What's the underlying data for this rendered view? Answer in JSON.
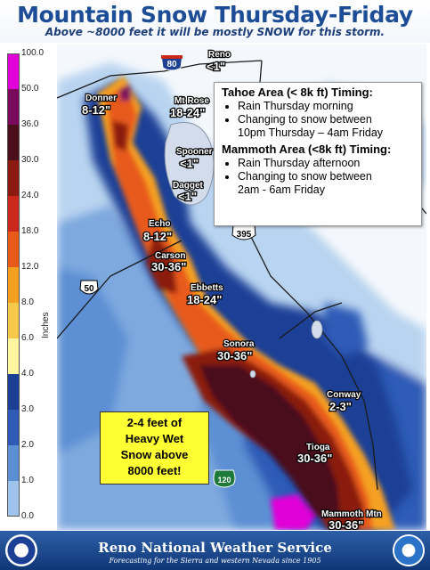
{
  "header": {
    "title": "Mountain Snow Thursday-Friday",
    "subtitle": "Above ~8000 feet it will be mostly SNOW for this storm."
  },
  "legend": {
    "units_label": "Inches",
    "ticks": [
      "100.0",
      "50.0",
      "36.0",
      "30.0",
      "24.0",
      "18.0",
      "12.0",
      "8.0",
      "6.0",
      "4.0",
      "3.0",
      "2.0",
      "1.0",
      "0.0"
    ],
    "colors": [
      "#e100d8",
      "#7a0a5e",
      "#4a0f1a",
      "#8b1a10",
      "#c9281a",
      "#e85a1a",
      "#f5a020",
      "#f8c84a",
      "#fff4a0",
      "#1c3f96",
      "#2f5bb7",
      "#5b8fd3",
      "#9ec3ec",
      "#ffffff"
    ]
  },
  "map": {
    "places": [
      {
        "name": "Reno",
        "value": "<1\""
      },
      {
        "name": "Donner",
        "value": "8-12\""
      },
      {
        "name": "Mt Rose",
        "value": "18-24\""
      },
      {
        "name": "Spooner",
        "value": "<1\""
      },
      {
        "name": "Dagget",
        "value": "<1\""
      },
      {
        "name": "Echo",
        "value": "8-12\""
      },
      {
        "name": "Carson",
        "value": "30-36\""
      },
      {
        "name": "Ebbetts",
        "value": "18-24\""
      },
      {
        "name": "Sonora",
        "value": "30-36\""
      },
      {
        "name": "Conway",
        "value": "2-3\""
      },
      {
        "name": "Tioga",
        "value": "30-36\""
      },
      {
        "name": "Mammoth Mtn",
        "value": "30-36\""
      }
    ],
    "shields": {
      "i80": "80",
      "us50": "50",
      "us395": "395",
      "ca120": "120"
    }
  },
  "timing": {
    "tahoe_heading": "Tahoe Area (< 8k ft) Timing:",
    "tahoe_bullets": [
      "Rain Thursday morning",
      "Changing to snow between",
      "10pm Thursday – 4am Friday"
    ],
    "mammoth_heading": "Mammoth Area (<8k ft) Timing:",
    "mammoth_bullets": [
      "Rain Thursday afternoon",
      "Changing to snow between",
      "2am - 6am Friday"
    ]
  },
  "callout": {
    "lines": [
      "2-4 feet of",
      "Heavy Wet",
      "Snow above",
      "8000 feet!"
    ]
  },
  "footer": {
    "office": "Reno National Weather Service",
    "tagline": "Forecasting for the Sierra and western Nevada since 1905"
  }
}
